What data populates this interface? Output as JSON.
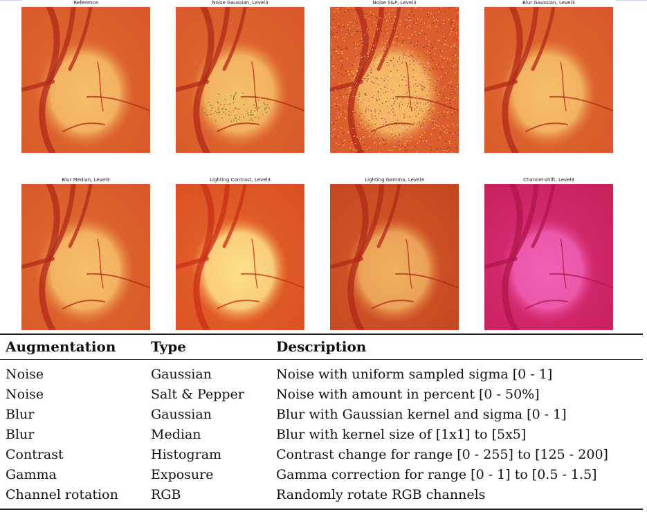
{
  "figure": {
    "panels": [
      {
        "title": "Reference",
        "variant": "normal"
      },
      {
        "title": "Noise Gaussian, Level3",
        "variant": "gauss"
      },
      {
        "title": "Noise S&P, Level3",
        "variant": "sp"
      },
      {
        "title": "Blur Gaussian, Level3",
        "variant": "normal"
      },
      {
        "title": "Blur Median, Level3",
        "variant": "normal"
      },
      {
        "title": "Lighting Contrast, Level3",
        "variant": "contrast"
      },
      {
        "title": "Lighting Gamma, Level3",
        "variant": "gamma"
      },
      {
        "title": "Channel-shift, Level3",
        "variant": "pink"
      }
    ],
    "colors": {
      "fundus_bg": "#d9582a",
      "disc": "#f6bf6a",
      "vessel": "#b12a18",
      "pink_bg": "#c81f5c",
      "pink_disc": "#f060b4"
    }
  },
  "table": {
    "headers": [
      "Augmentation",
      "Type",
      "Description"
    ],
    "rows": [
      [
        "Noise",
        "Gaussian",
        "Noise with uniform sampled sigma [0 - 1]"
      ],
      [
        "Noise",
        "Salt & Pepper",
        "Noise with amount in percent [0 - 50%]"
      ],
      [
        "Blur",
        "Gaussian",
        "Blur with Gaussian kernel and sigma [0 - 1]"
      ],
      [
        "Blur",
        "Median",
        "Blur with kernel size of [1x1] to [5x5]"
      ],
      [
        "Contrast",
        "Histogram",
        "Contrast change for range [0 - 255] to [125 - 200]"
      ],
      [
        "Gamma",
        "Exposure",
        "Gamma correction for range [0 - 1] to [0.5 - 1.5]"
      ],
      [
        "Channel rotation",
        "RGB",
        "Randomly rotate RGB channels"
      ]
    ]
  }
}
